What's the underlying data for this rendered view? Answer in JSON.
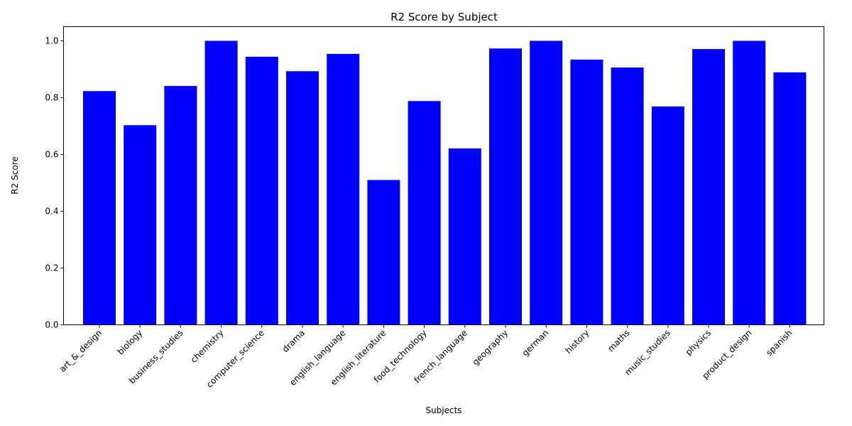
{
  "chart_data": {
    "type": "bar",
    "title": "R2 Score by Subject",
    "xlabel": "Subjects",
    "ylabel": "R2 Score",
    "ylim": [
      0,
      1.05
    ],
    "yticks": [
      "0.0",
      "0.2",
      "0.4",
      "0.6",
      "0.8",
      "1.0"
    ],
    "grid": false,
    "bar_color": "#0000ff",
    "categories": [
      "art_&_design",
      "biology",
      "business_studies",
      "chemistry",
      "computer_science",
      "drama",
      "english_language",
      "english_literature",
      "food_technology",
      "french_language",
      "geography",
      "german",
      "history",
      "maths",
      "music_studies",
      "physics",
      "product_design",
      "spanish"
    ],
    "values": [
      0.823,
      0.703,
      0.841,
      1.0,
      0.944,
      0.893,
      0.954,
      0.51,
      0.788,
      0.621,
      0.973,
      1.0,
      0.934,
      0.906,
      0.769,
      0.971,
      1.0,
      0.889
    ]
  }
}
